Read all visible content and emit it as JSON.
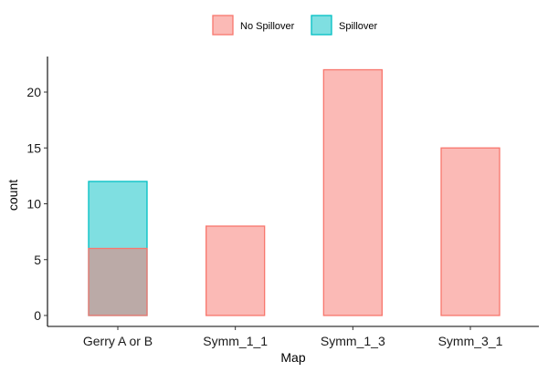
{
  "chart_data": {
    "type": "bar",
    "xlabel": "Map",
    "ylabel": "count",
    "categories": [
      "Gerry A or B",
      "Symm_1_1",
      "Symm_1_3",
      "Symm_3_1"
    ],
    "series": [
      {
        "name": "No Spillover",
        "values": [
          6,
          8,
          22,
          15
        ],
        "fill": "#F8766D",
        "stroke": "#F8766D"
      },
      {
        "name": "Spillover",
        "values": [
          12,
          0,
          0,
          0
        ],
        "fill": "#00BFC4",
        "stroke": "#00BFC4"
      }
    ],
    "overlay_note_hidden": false,
    "ylim": [
      0,
      22
    ],
    "yticks": [
      0,
      5,
      10,
      15,
      20
    ],
    "legend_position": "top",
    "grid": false,
    "bar_opacity": 0.5
  }
}
